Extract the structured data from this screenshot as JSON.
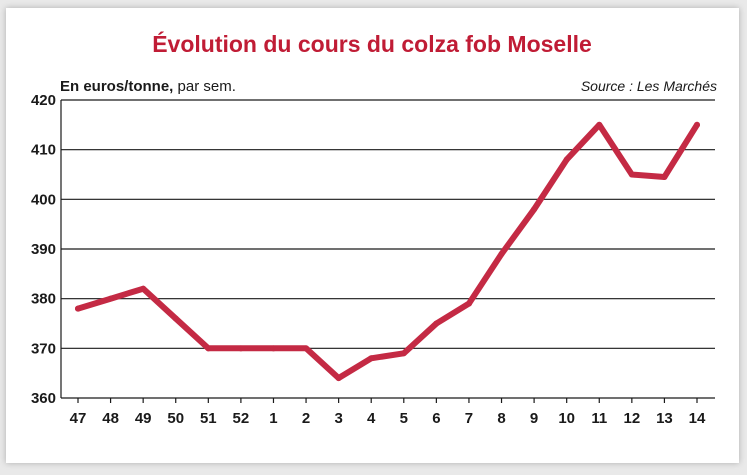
{
  "colors": {
    "title": "#c01c35",
    "line": "#c42a44",
    "grid": "#1a1a1a",
    "text": "#1a1a1a"
  },
  "chart_data": {
    "type": "line",
    "title": "Évolution du cours du colza fob Moselle",
    "unit_label_bold": "En euros/tonne,",
    "unit_label_rest": " par sem.",
    "source": "Source : Les Marchés",
    "categories": [
      "47",
      "48",
      "49",
      "50",
      "51",
      "52",
      "1",
      "2",
      "3",
      "4",
      "5",
      "6",
      "7",
      "8",
      "9",
      "10",
      "11",
      "12",
      "13",
      "14"
    ],
    "series": [
      {
        "values": [
          378,
          380,
          382,
          376,
          370,
          370,
          370,
          370,
          364,
          368,
          369,
          375,
          379,
          389,
          398,
          408,
          415,
          405,
          404.5,
          415
        ]
      }
    ],
    "ylim": [
      360,
      420
    ],
    "yticks": [
      360,
      370,
      380,
      390,
      400,
      410,
      420
    ],
    "grid": true,
    "legend": "none"
  }
}
